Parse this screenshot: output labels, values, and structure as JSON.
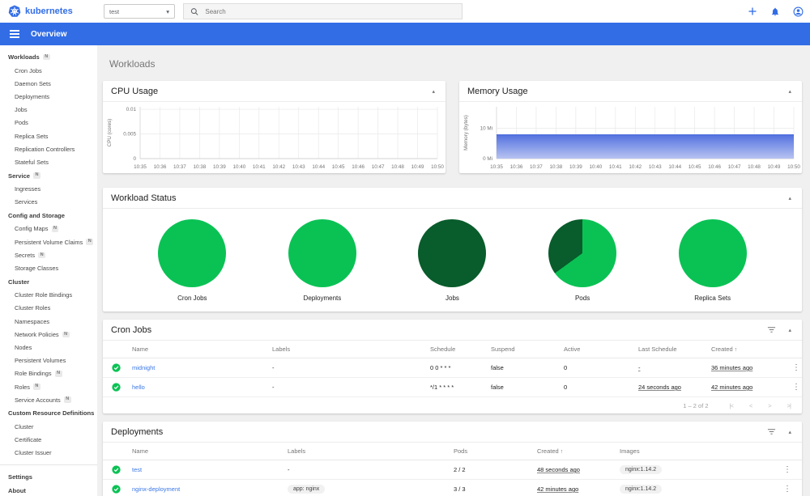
{
  "topbar": {
    "logo_text": "kubernetes",
    "namespace_value": "test",
    "search_placeholder": "Search",
    "accent_color": "#326de6"
  },
  "toolbar": {
    "title": "Overview"
  },
  "page": {
    "title": "Workloads"
  },
  "sidebar": {
    "badge_text": "N",
    "sections": [
      {
        "label": "Workloads",
        "namespaced": true,
        "items": [
          {
            "label": "Cron Jobs"
          },
          {
            "label": "Daemon Sets"
          },
          {
            "label": "Deployments"
          },
          {
            "label": "Jobs"
          },
          {
            "label": "Pods"
          },
          {
            "label": "Replica Sets"
          },
          {
            "label": "Replication Controllers"
          },
          {
            "label": "Stateful Sets"
          }
        ]
      },
      {
        "label": "Service",
        "namespaced": true,
        "items": [
          {
            "label": "Ingresses"
          },
          {
            "label": "Services"
          }
        ]
      },
      {
        "label": "Config and Storage",
        "namespaced": false,
        "items": [
          {
            "label": "Config Maps",
            "namespaced": true
          },
          {
            "label": "Persistent Volume Claims",
            "namespaced": true
          },
          {
            "label": "Secrets",
            "namespaced": true
          },
          {
            "label": "Storage Classes"
          }
        ]
      },
      {
        "label": "Cluster",
        "namespaced": false,
        "items": [
          {
            "label": "Cluster Role Bindings"
          },
          {
            "label": "Cluster Roles"
          },
          {
            "label": "Namespaces"
          },
          {
            "label": "Network Policies",
            "namespaced": true
          },
          {
            "label": "Nodes"
          },
          {
            "label": "Persistent Volumes"
          },
          {
            "label": "Role Bindings",
            "namespaced": true
          },
          {
            "label": "Roles",
            "namespaced": true
          },
          {
            "label": "Service Accounts",
            "namespaced": true
          }
        ]
      },
      {
        "label": "Custom Resource Definitions",
        "namespaced": false,
        "items": [
          {
            "label": "Cluster"
          },
          {
            "label": "Certificate"
          },
          {
            "label": "Cluster Issuer"
          }
        ]
      }
    ],
    "footer_items": [
      {
        "label": "Settings"
      },
      {
        "label": "About"
      }
    ]
  },
  "chart_data": [
    {
      "type": "line",
      "title": "CPU Usage",
      "ylabel": "CPU (cores)",
      "x": [
        "10:35",
        "10:36",
        "10:37",
        "10:38",
        "10:39",
        "10:40",
        "10:41",
        "10:42",
        "10:43",
        "10:44",
        "10:45",
        "10:46",
        "10:47",
        "10:48",
        "10:49",
        "10:50"
      ],
      "yticks": [
        {
          "v": 0,
          "label": "0"
        },
        {
          "v": 0.005,
          "label": "0.005"
        },
        {
          "v": 0.01,
          "label": "0.01"
        }
      ],
      "ylim": [
        0,
        0.0105
      ],
      "grid": true,
      "series": []
    },
    {
      "type": "area",
      "title": "Memory Usage",
      "ylabel": "Memory (bytes)",
      "x": [
        "10:35",
        "10:36",
        "10:37",
        "10:38",
        "10:39",
        "10:40",
        "10:41",
        "10:42",
        "10:43",
        "10:44",
        "10:45",
        "10:46",
        "10:47",
        "10:48",
        "10:49",
        "10:50"
      ],
      "yticks": [
        {
          "v": 0,
          "label": "0 Mi"
        },
        {
          "v": 10,
          "label": "10 Mi"
        }
      ],
      "ylim": [
        0,
        17
      ],
      "grid": true,
      "fill_top": "#5472e0",
      "fill_bottom": "#b7c3f1",
      "stroke": "#3a5dd9",
      "series": [
        {
          "name": "Memory Usage (Mi)",
          "values": [
            7.8,
            7.8,
            7.8,
            7.8,
            7.8,
            7.8,
            7.8,
            7.8,
            7.8,
            7.8,
            7.8,
            7.8,
            7.8,
            7.8,
            7.8,
            7.8
          ]
        }
      ]
    }
  ],
  "workload_status": {
    "title": "Workload Status",
    "colors": {
      "bright": "#0ac254",
      "dark": "#095c2b"
    },
    "pies": [
      {
        "label": "Cron Jobs",
        "segments": [
          {
            "name": "running",
            "percent": 100,
            "color": "bright"
          }
        ]
      },
      {
        "label": "Deployments",
        "segments": [
          {
            "name": "running",
            "percent": 100,
            "color": "bright"
          }
        ]
      },
      {
        "label": "Jobs",
        "segments": [
          {
            "name": "succeeded",
            "percent": 100,
            "color": "dark"
          }
        ]
      },
      {
        "label": "Pods",
        "segments": [
          {
            "name": "running",
            "percent": 65,
            "color": "bright"
          },
          {
            "name": "succeeded",
            "percent": 35,
            "color": "dark"
          }
        ]
      },
      {
        "label": "Replica Sets",
        "segments": [
          {
            "name": "running",
            "percent": 100,
            "color": "bright"
          }
        ]
      }
    ]
  },
  "cron_jobs_table": {
    "title": "Cron Jobs",
    "col_template": "36px 173px 195px 75px 90px 92px 90px 96px 16px",
    "columns": [
      {
        "label": ""
      },
      {
        "label": "Name"
      },
      {
        "label": "Labels"
      },
      {
        "label": "Schedule"
      },
      {
        "label": "Suspend"
      },
      {
        "label": "Active"
      },
      {
        "label": "Last Schedule"
      },
      {
        "label": "Created",
        "sort": "asc"
      },
      {
        "label": ""
      }
    ],
    "rows": [
      {
        "cells": [
          {
            "t": "status"
          },
          {
            "t": "link",
            "v": "midnight"
          },
          {
            "t": "text",
            "v": "-"
          },
          {
            "t": "text",
            "v": "0 0 * * *"
          },
          {
            "t": "text",
            "v": "false"
          },
          {
            "t": "text",
            "v": "0"
          },
          {
            "t": "underline",
            "v": "-"
          },
          {
            "t": "underline",
            "v": "36 minutes ago"
          },
          {
            "t": "menu"
          }
        ]
      },
      {
        "cells": [
          {
            "t": "status"
          },
          {
            "t": "link",
            "v": "hello"
          },
          {
            "t": "text",
            "v": "-"
          },
          {
            "t": "text",
            "v": "*/1 * * * *"
          },
          {
            "t": "text",
            "v": "false"
          },
          {
            "t": "text",
            "v": "0"
          },
          {
            "t": "underline",
            "v": "24 seconds ago"
          },
          {
            "t": "underline",
            "v": "42 minutes ago"
          },
          {
            "t": "menu"
          }
        ]
      }
    ],
    "pagination": {
      "range_label": "1 – 2 of 2",
      "buttons": [
        {
          "name": "first-page",
          "glyph": "|<"
        },
        {
          "name": "previous-page",
          "glyph": "<"
        },
        {
          "name": "next-page",
          "glyph": ">"
        },
        {
          "name": "last-page",
          "glyph": ">|"
        }
      ]
    }
  },
  "deployments_table": {
    "title": "Deployments",
    "col_template": "36px 192px 205px 103px 102px 198px 27px",
    "columns": [
      {
        "label": ""
      },
      {
        "label": "Name"
      },
      {
        "label": "Labels"
      },
      {
        "label": "Pods"
      },
      {
        "label": "Created",
        "sort": "asc"
      },
      {
        "label": "Images"
      },
      {
        "label": ""
      }
    ],
    "rows": [
      {
        "cells": [
          {
            "t": "status"
          },
          {
            "t": "link",
            "v": "test"
          },
          {
            "t": "text",
            "v": "-"
          },
          {
            "t": "text",
            "v": "2 / 2"
          },
          {
            "t": "underline",
            "v": "48 seconds ago"
          },
          {
            "t": "chip",
            "v": "nginx:1.14.2"
          },
          {
            "t": "menu"
          }
        ]
      },
      {
        "cells": [
          {
            "t": "status"
          },
          {
            "t": "link",
            "v": "nginx-deployment"
          },
          {
            "t": "chip",
            "v": "app: nginx"
          },
          {
            "t": "text",
            "v": "3 / 3"
          },
          {
            "t": "underline",
            "v": "42 minutes ago"
          },
          {
            "t": "chip",
            "v": "nginx:1.14.2"
          },
          {
            "t": "menu"
          }
        ]
      }
    ]
  }
}
